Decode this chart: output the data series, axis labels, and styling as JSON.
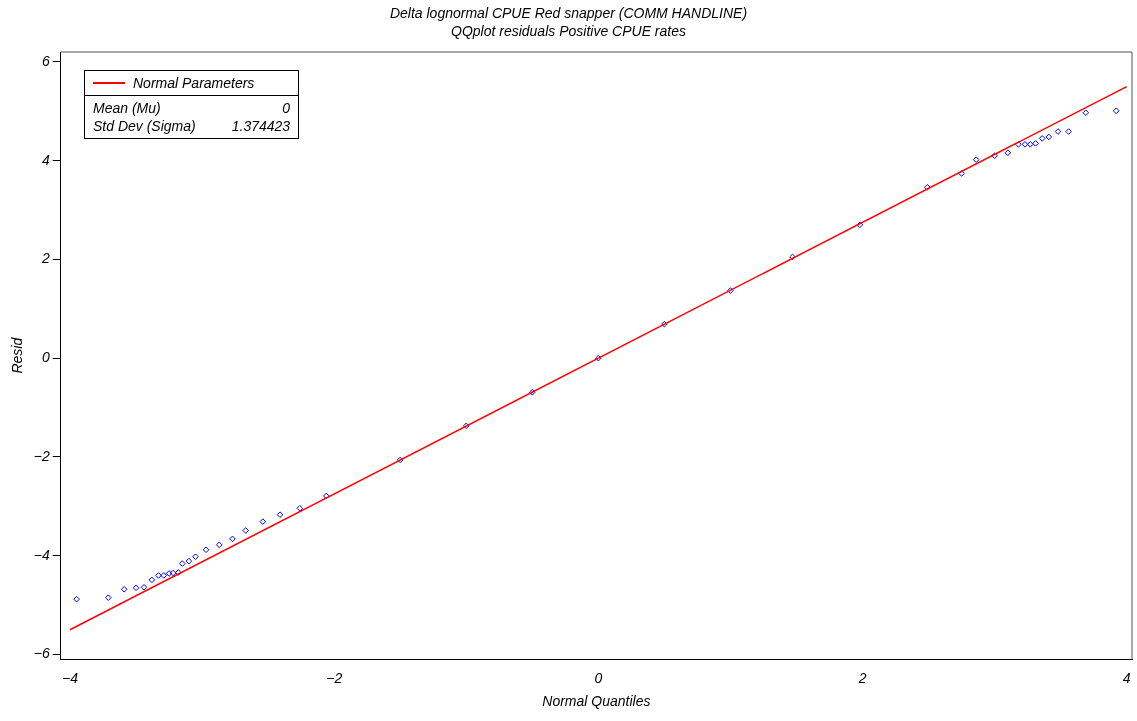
{
  "chart_data": {
    "type": "scatter",
    "title": "Delta lognormal CPUE Red snapper (COMM HANDLINE)",
    "subtitle": "QQplot residuals Positive CPUE rates",
    "xlabel": "Normal Quantiles",
    "ylabel": "Resid",
    "xlim": [
      -4.07,
      4.04
    ],
    "ylim": [
      -6.1,
      6.2
    ],
    "xticks": [
      -4,
      -2,
      0,
      2,
      4
    ],
    "yticks": [
      -6,
      -4,
      -2,
      0,
      2,
      4,
      6
    ],
    "grid": false,
    "legend": "top left",
    "marker": "diamond",
    "annotations": [
      "Mean (Mu)",
      "0",
      "Std Dev (Sigma)",
      "1.374423"
    ],
    "series": [
      {
        "color": "#0000ff",
        "x": [
          -3.95,
          -3.71,
          -3.59,
          -3.5,
          -3.44,
          -3.38,
          -3.33,
          -3.29,
          -3.25,
          -3.22,
          -3.18,
          -3.15,
          -3.1,
          -3.05,
          -2.97,
          -2.87,
          -2.77,
          -2.67,
          -2.54,
          -2.41,
          -2.26,
          -2.06,
          -1.5,
          -1,
          -0.5,
          0,
          0.5,
          1,
          1.47,
          1.98,
          2.49,
          2.75,
          2.86,
          3,
          3.1,
          3.18,
          3.23,
          3.27,
          3.31,
          3.36,
          3.41,
          3.48,
          3.56,
          3.69,
          3.92
        ],
        "values": [
          -4.88,
          -4.85,
          -4.68,
          -4.65,
          -4.64,
          -4.49,
          -4.4,
          -4.4,
          -4.36,
          -4.35,
          -4.34,
          -4.16,
          -4.11,
          -4.02,
          -3.88,
          -3.78,
          -3.66,
          -3.49,
          -3.31,
          -3.17,
          -3.04,
          -2.79,
          -2.06,
          -1.37,
          -0.69,
          0,
          0.69,
          1.37,
          2.05,
          2.7,
          3.46,
          3.74,
          4.02,
          4.1,
          4.16,
          4.33,
          4.33,
          4.33,
          4.35,
          4.45,
          4.48,
          4.59,
          4.59,
          4.97,
          5.01
        ]
      },
      {
        "type": "line",
        "name": "Normal Parameters",
        "color": "#ff0000",
        "marker": "none",
        "line_style": "solid",
        "x": [
          -4,
          4
        ],
        "values": [
          -5.5,
          5.5
        ]
      }
    ]
  }
}
